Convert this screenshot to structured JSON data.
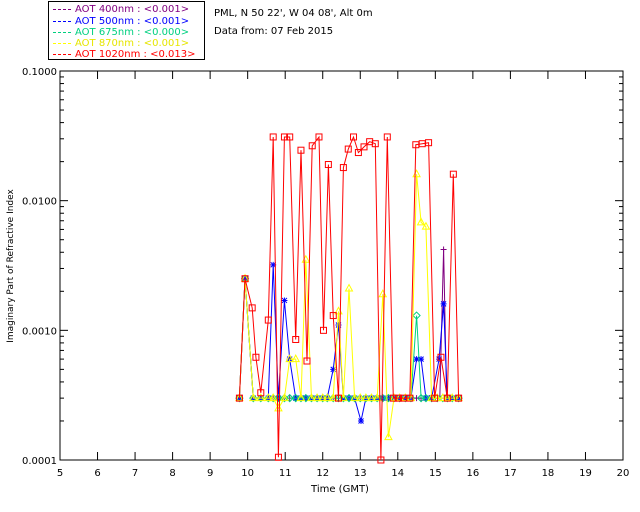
{
  "info": {
    "station": "PML, N 50 22', W 04 08', Alt 0m",
    "date": "Data from: 07 Feb 2015"
  },
  "chart_data": {
    "type": "line",
    "title": "",
    "xlabel": "Time (GMT)",
    "ylabel": "Imaginary Part of Refractive Index",
    "yscale": "log",
    "xlim": [
      5,
      20
    ],
    "ylim": [
      0.0001,
      0.1
    ],
    "x_ticks": [
      "5",
      "6",
      "7",
      "8",
      "9",
      "10",
      "11",
      "12",
      "13",
      "14",
      "15",
      "16",
      "17",
      "18",
      "19",
      "20"
    ],
    "y_ticks": [
      "0.0001",
      "0.0010",
      "0.0100",
      "0.1000"
    ],
    "legend_position": "above-top-left",
    "series": [
      {
        "name": "AOT 400nm : <0.001>",
        "color": "#800080",
        "marker": "plus",
        "x": [
          9.78,
          9.93,
          10.15,
          10.35,
          10.58,
          10.68,
          10.82,
          10.98,
          11.12,
          11.28,
          11.42,
          11.55,
          11.7,
          11.85,
          12.0,
          12.12,
          12.28,
          12.42,
          12.55,
          12.7,
          12.85,
          13.0,
          13.15,
          13.3,
          13.45,
          13.6,
          13.75,
          13.9,
          14.05,
          14.2,
          14.35,
          14.5,
          14.62,
          14.72,
          14.85,
          15.0,
          15.12,
          15.22,
          15.3,
          15.45,
          15.62
        ],
        "y": [
          0.0003,
          0.0025,
          0.0003,
          0.0003,
          0.0003,
          0.0003,
          0.0003,
          0.0003,
          0.0003,
          0.0003,
          0.0003,
          0.0003,
          0.0003,
          0.0003,
          0.0003,
          0.0003,
          0.0003,
          0.0003,
          0.0003,
          0.0003,
          0.0003,
          0.0003,
          0.0003,
          0.0003,
          0.0003,
          0.0003,
          0.0003,
          0.0003,
          0.0003,
          0.0003,
          0.0003,
          0.0003,
          0.0003,
          0.0003,
          0.0003,
          0.0003,
          0.0003,
          0.0042,
          0.0003,
          0.0003,
          0.0003
        ]
      },
      {
        "name": "AOT 500nm : <0.001>",
        "color": "#0000ff",
        "marker": "star",
        "x": [
          9.78,
          9.93,
          10.15,
          10.35,
          10.55,
          10.68,
          10.82,
          10.98,
          11.12,
          11.28,
          11.42,
          11.55,
          11.7,
          11.85,
          12.0,
          12.12,
          12.28,
          12.42,
          12.55,
          12.7,
          12.85,
          13.02,
          13.15,
          13.3,
          13.45,
          13.6,
          13.75,
          13.9,
          14.05,
          14.2,
          14.35,
          14.5,
          14.62,
          14.75,
          14.9,
          15.1,
          15.22,
          15.32,
          15.45,
          15.62
        ],
        "y": [
          0.0003,
          0.0025,
          0.0003,
          0.0003,
          0.0003,
          0.0032,
          0.0003,
          0.0017,
          0.0006,
          0.0003,
          0.0003,
          0.0003,
          0.0003,
          0.0003,
          0.0003,
          0.0003,
          0.0005,
          0.0011,
          0.0003,
          0.0003,
          0.0003,
          0.0002,
          0.0003,
          0.0003,
          0.0003,
          0.0003,
          0.0003,
          0.0003,
          0.0003,
          0.0003,
          0.0003,
          0.0006,
          0.0006,
          0.0003,
          0.0003,
          0.0006,
          0.0016,
          0.0003,
          0.0003,
          0.0003
        ]
      },
      {
        "name": "AOT 675nm : <0.000>",
        "color": "#00d080",
        "marker": "diamond",
        "x": [
          9.78,
          9.93,
          10.15,
          10.35,
          10.55,
          10.68,
          10.82,
          10.98,
          11.12,
          11.28,
          11.42,
          11.55,
          11.7,
          11.85,
          12.0,
          12.12,
          12.28,
          12.42,
          12.55,
          12.7,
          12.85,
          13.0,
          13.15,
          13.3,
          13.45,
          13.6,
          13.75,
          13.9,
          14.05,
          14.2,
          14.35,
          14.5,
          14.62,
          14.75,
          14.9,
          15.05,
          15.2,
          15.32,
          15.45,
          15.62
        ],
        "y": [
          0.0003,
          0.0025,
          0.0003,
          0.0003,
          0.0003,
          0.0003,
          0.0003,
          0.0003,
          0.0003,
          0.0003,
          0.0003,
          0.0003,
          0.0003,
          0.0003,
          0.0003,
          0.0003,
          0.0003,
          0.0003,
          0.0003,
          0.0003,
          0.0003,
          0.0003,
          0.0003,
          0.0003,
          0.0003,
          0.0003,
          0.0003,
          0.0003,
          0.0003,
          0.0003,
          0.0003,
          0.0013,
          0.0003,
          0.0003,
          0.0003,
          0.0003,
          0.0003,
          0.0003,
          0.0003,
          0.0003
        ]
      },
      {
        "name": "AOT 870nm : <0.001>",
        "color": "#ffff00",
        "marker": "triangle",
        "x": [
          9.78,
          9.93,
          10.15,
          10.35,
          10.55,
          10.68,
          10.82,
          10.98,
          11.12,
          11.28,
          11.42,
          11.55,
          11.7,
          11.85,
          12.0,
          12.12,
          12.28,
          12.42,
          12.55,
          12.7,
          12.85,
          13.0,
          13.15,
          13.3,
          13.45,
          13.6,
          13.75,
          13.9,
          14.05,
          14.2,
          14.35,
          14.5,
          14.62,
          14.75,
          14.9,
          15.05,
          15.2,
          15.32,
          15.45,
          15.62
        ],
        "y": [
          0.0003,
          0.0025,
          0.0003,
          0.0003,
          0.0003,
          0.0003,
          0.00025,
          0.0003,
          0.0006,
          0.0006,
          0.0003,
          0.0035,
          0.0003,
          0.0003,
          0.0003,
          0.0003,
          0.0003,
          0.0014,
          0.0003,
          0.0021,
          0.0003,
          0.0003,
          0.0003,
          0.0003,
          0.0003,
          0.0019,
          0.00015,
          0.0003,
          0.0003,
          0.0003,
          0.0003,
          0.016,
          0.0068,
          0.0063,
          0.0003,
          0.0003,
          0.0003,
          0.0003,
          0.0003,
          0.0003
        ]
      },
      {
        "name": "AOT 1020nm : <0.013>",
        "color": "#ff0000",
        "marker": "square",
        "x": [
          9.78,
          9.93,
          10.12,
          10.22,
          10.35,
          10.55,
          10.68,
          10.82,
          10.98,
          11.12,
          11.28,
          11.42,
          11.58,
          11.72,
          11.9,
          12.02,
          12.15,
          12.28,
          12.42,
          12.55,
          12.68,
          12.82,
          12.95,
          13.1,
          13.25,
          13.4,
          13.55,
          13.72,
          13.88,
          14.02,
          14.15,
          14.32,
          14.48,
          14.65,
          14.82,
          14.98,
          15.15,
          15.32,
          15.48,
          15.62
        ],
        "y": [
          0.0003,
          0.0025,
          0.00149,
          0.00062,
          0.00033,
          0.0012,
          0.031,
          0.000105,
          0.031,
          0.031,
          0.00085,
          0.0245,
          0.00058,
          0.0265,
          0.031,
          0.001,
          0.019,
          0.0013,
          0.0003,
          0.018,
          0.025,
          0.031,
          0.0235,
          0.026,
          0.0285,
          0.0275,
          0.0001,
          0.031,
          0.0003,
          0.0003,
          0.0003,
          0.0003,
          0.027,
          0.0275,
          0.028,
          0.0003,
          0.00062,
          0.0003,
          0.016,
          0.0003
        ]
      }
    ]
  }
}
